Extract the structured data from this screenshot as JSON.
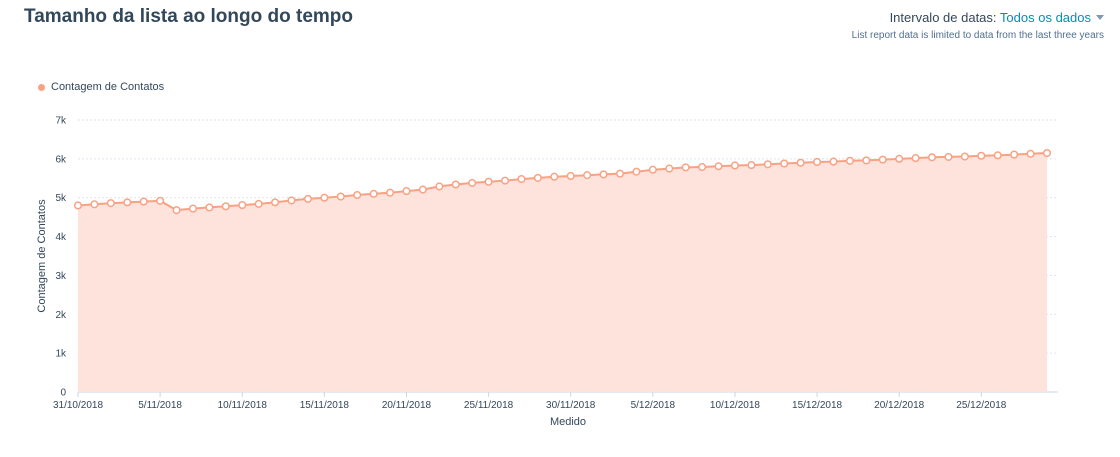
{
  "header": {
    "title": "Tamanho da lista ao longo do tempo",
    "range_label": "Intervalo de datas:",
    "range_value": "Todos os dados",
    "note": "List report data is limited to data from the last three years"
  },
  "colors": {
    "series": "#f8a283",
    "fill": "#fde3dc",
    "grid": "#dfe3eb"
  },
  "chart_data": {
    "type": "area",
    "title": "",
    "xlabel": "Medido",
    "ylabel": "Contagem de Contatos",
    "ylim": [
      0,
      7000
    ],
    "yticks": [
      0,
      1000,
      2000,
      3000,
      4000,
      5000,
      6000,
      7000
    ],
    "ytick_labels": [
      "0",
      "1k",
      "2k",
      "3k",
      "4k",
      "5k",
      "6k",
      "7k"
    ],
    "xlim": [
      "31/10/2018",
      "29/12/2018"
    ],
    "xtick_labels": [
      "31/10/2018",
      "5/11/2018",
      "10/11/2018",
      "15/11/2018",
      "20/11/2018",
      "25/11/2018",
      "30/11/2018",
      "5/12/2018",
      "10/12/2018",
      "15/12/2018",
      "20/12/2018",
      "25/12/2018"
    ],
    "legend": "top-left",
    "grid": true,
    "series": [
      {
        "name": "Contagem de Contatos",
        "x": [
          "31/10/2018",
          "1/11/2018",
          "2/11/2018",
          "3/11/2018",
          "4/11/2018",
          "5/11/2018",
          "6/11/2018",
          "7/11/2018",
          "8/11/2018",
          "9/11/2018",
          "10/11/2018",
          "11/11/2018",
          "12/11/2018",
          "13/11/2018",
          "14/11/2018",
          "15/11/2018",
          "16/11/2018",
          "17/11/2018",
          "18/11/2018",
          "19/11/2018",
          "20/11/2018",
          "21/11/2018",
          "22/11/2018",
          "23/11/2018",
          "24/11/2018",
          "25/11/2018",
          "26/11/2018",
          "27/11/2018",
          "28/11/2018",
          "29/11/2018",
          "30/11/2018",
          "1/12/2018",
          "2/12/2018",
          "3/12/2018",
          "4/12/2018",
          "5/12/2018",
          "6/12/2018",
          "7/12/2018",
          "8/12/2018",
          "9/12/2018",
          "10/12/2018",
          "11/12/2018",
          "12/12/2018",
          "13/12/2018",
          "14/12/2018",
          "15/12/2018",
          "16/12/2018",
          "17/12/2018",
          "18/12/2018",
          "19/12/2018",
          "20/12/2018",
          "21/12/2018",
          "22/12/2018",
          "23/12/2018",
          "24/12/2018",
          "25/12/2018",
          "26/12/2018",
          "27/12/2018",
          "28/12/2018",
          "29/12/2018"
        ],
        "values": [
          4800,
          4830,
          4860,
          4880,
          4900,
          4920,
          4680,
          4720,
          4750,
          4780,
          4810,
          4840,
          4880,
          4930,
          4970,
          5000,
          5030,
          5070,
          5100,
          5130,
          5170,
          5210,
          5290,
          5340,
          5380,
          5410,
          5440,
          5480,
          5510,
          5540,
          5560,
          5580,
          5600,
          5620,
          5670,
          5720,
          5750,
          5780,
          5790,
          5810,
          5830,
          5840,
          5860,
          5880,
          5900,
          5920,
          5930,
          5950,
          5960,
          5980,
          6000,
          6020,
          6040,
          6050,
          6060,
          6080,
          6090,
          6110,
          6130,
          6150
        ]
      }
    ]
  }
}
